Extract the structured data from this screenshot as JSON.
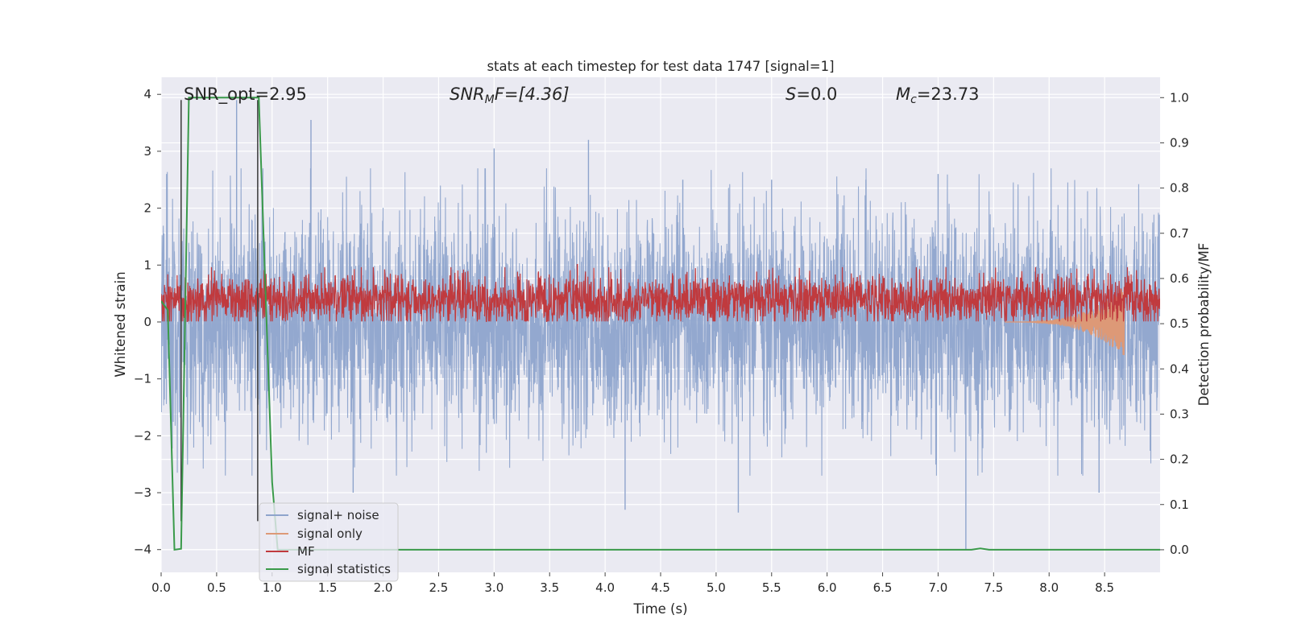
{
  "chart_data": {
    "type": "line",
    "title": "stats at each timestep for test data 1747 [signal=1]",
    "xlabel": "Time (s)",
    "ylabel_left": "Whitened strain",
    "ylabel_right": "Detection probability/MF",
    "xlim": [
      0.0,
      9.0
    ],
    "ylim_left": [
      -4.4,
      4.3
    ],
    "ylim_right": [
      -0.05,
      1.045
    ],
    "x_ticks": [
      "0.0",
      "0.5",
      "1.0",
      "1.5",
      "2.0",
      "2.5",
      "3.0",
      "3.5",
      "4.0",
      "4.5",
      "5.0",
      "5.5",
      "6.0",
      "6.5",
      "7.0",
      "7.5",
      "8.0",
      "8.5"
    ],
    "y_ticks_left": [
      "4",
      "3",
      "2",
      "1",
      "0",
      "−1",
      "−2",
      "−3",
      "−4"
    ],
    "y_ticks_right": [
      "1.0",
      "0.9",
      "0.8",
      "0.7",
      "0.6",
      "0.5",
      "0.4",
      "0.3",
      "0.2",
      "0.1",
      "0.0"
    ],
    "grid": true,
    "legend_position": "lower-left",
    "annotations": {
      "snr_opt": "SNR_opt=2.95",
      "snr_mf_label": "SNR",
      "snr_mf_sub": "M",
      "snr_mf_rest": "F=[4.36]",
      "s_label": "S",
      "s_rest": "=0.0",
      "mc_label": "M",
      "mc_sub": "c",
      "mc_rest": "=23.73"
    },
    "series": [
      {
        "name": "signal+ noise",
        "axis": "left",
        "color": "#8ea4cc",
        "description_values": "noise-like whitened strain, amplitude roughly ±2.5 with spikes up to 3.9 near t=0.7 and down to −4.0 near t=7.25",
        "peaks": [
          [
            0.05,
            2.6
          ],
          [
            0.68,
            3.9
          ],
          [
            1.35,
            3.55
          ],
          [
            3.0,
            3.05
          ],
          [
            3.85,
            3.2
          ],
          [
            4.7,
            2.5
          ],
          [
            5.5,
            2.5
          ],
          [
            6.35,
            2.5
          ],
          [
            7.0,
            2.6
          ],
          [
            0.18,
            -2.95
          ],
          [
            1.73,
            -3.0
          ],
          [
            4.18,
            -3.3
          ],
          [
            5.2,
            -3.35
          ],
          [
            7.25,
            -4.0
          ],
          [
            8.45,
            -3.0
          ]
        ]
      },
      {
        "name": "signal only",
        "axis": "left",
        "color": "#dd9977",
        "chirp": {
          "start": 7.6,
          "end": 8.68,
          "max_amplitude": 0.62
        }
      },
      {
        "name": "MF",
        "axis": "right",
        "color": "#c03a3e",
        "description_values": "matched filter output oscillating around 0.55 on right axis, between about 0.51 and 0.62",
        "level": 0.553,
        "spread": 0.035,
        "peaks": [
          [
            3.75,
            0.632
          ],
          [
            7.9,
            0.61
          ]
        ]
      },
      {
        "name": "signal statistics",
        "axis": "right",
        "color": "#3a9a4a",
        "points": [
          [
            0.0,
            0.55
          ],
          [
            0.06,
            0.53
          ],
          [
            0.12,
            0.0
          ],
          [
            0.18,
            0.002
          ],
          [
            0.25,
            1.0
          ],
          [
            0.88,
            1.0
          ],
          [
            1.0,
            0.15
          ],
          [
            1.05,
            0.0
          ],
          [
            7.3,
            0.0
          ],
          [
            7.38,
            0.003
          ],
          [
            7.46,
            0.0
          ],
          [
            9.0,
            0.0
          ]
        ]
      },
      {
        "name": "markers",
        "axis": "left",
        "color": "#444444",
        "vertical_lines": [
          0.18,
          0.87
        ],
        "y_range": [
          -3.5,
          3.9
        ]
      }
    ]
  }
}
